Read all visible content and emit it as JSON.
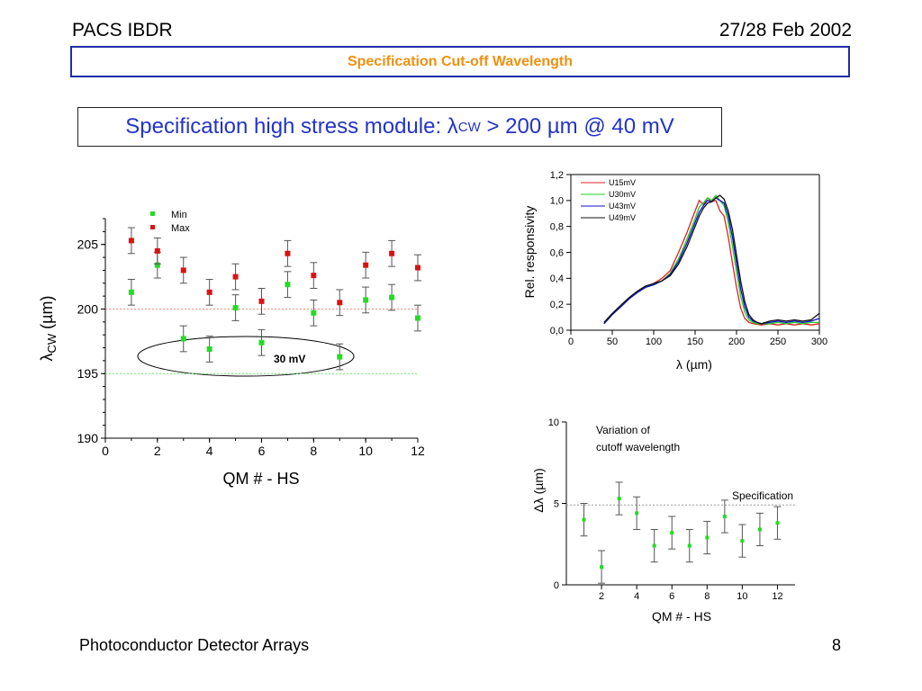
{
  "header": {
    "left": "PACS IBDR",
    "right": "27/28 Feb 2002"
  },
  "title": "Specification Cut-off Wavelength",
  "spec": {
    "prefix": "Specification high stress module: ",
    "lambda": "λ",
    "sub": "CW",
    "suffix": " > 200 µm @ 40 mV"
  },
  "footer": {
    "left": "Photoconductor Detector Arrays",
    "page": "8"
  },
  "colors": {
    "title": "#f09010",
    "box_border": "#1f2ca8",
    "spec_text": "#2333c8",
    "min": "#22dd22",
    "max": "#dd1111"
  },
  "chart_data": [
    {
      "type": "scatter",
      "title": "",
      "xlabel": "QM # - HS",
      "ylabel": "λCW (µm)",
      "xlim": [
        0,
        12
      ],
      "ylim": [
        190,
        207
      ],
      "xticks": [
        "0",
        "2",
        "4",
        "6",
        "8",
        "10",
        "12"
      ],
      "yticks": [
        "190",
        "195",
        "200",
        "205"
      ],
      "legend_position": "top-left",
      "series": [
        {
          "name": "Min",
          "color": "#22dd22",
          "x": [
            1,
            2,
            3,
            4,
            5,
            6,
            7,
            8,
            9,
            10,
            11,
            12
          ],
          "y": [
            201.3,
            203.4,
            197.7,
            196.9,
            200.1,
            197.4,
            201.9,
            199.7,
            196.3,
            200.7,
            200.9,
            199.3
          ],
          "err": 1.0
        },
        {
          "name": "Max",
          "color": "#dd1111",
          "x": [
            1,
            2,
            3,
            4,
            5,
            6,
            7,
            8,
            9,
            10,
            11,
            12
          ],
          "y": [
            205.3,
            204.5,
            203.0,
            201.3,
            202.5,
            200.6,
            204.3,
            202.6,
            200.5,
            203.4,
            204.3,
            203.2
          ],
          "err": 1.0
        }
      ],
      "reference_lines": [
        {
          "y": 200,
          "color": "#ff8888"
        },
        {
          "y": 195,
          "color": "#66ee66"
        }
      ],
      "annotations": [
        {
          "text": "30 mV"
        }
      ]
    },
    {
      "type": "line",
      "title": "",
      "xlabel": "λ (µm)",
      "ylabel": "Rel. responsivity",
      "xlim": [
        0,
        300
      ],
      "ylim": [
        0,
        1.2
      ],
      "xticks": [
        "0",
        "50",
        "100",
        "150",
        "200",
        "250",
        "300"
      ],
      "yticks": [
        "0,0",
        "0,2",
        "0,4",
        "0,6",
        "0,8",
        "1,0",
        "1,2"
      ],
      "legend_position": "top-left",
      "series": [
        {
          "name": "U15mV",
          "color": "#dd2222",
          "x": [
            40,
            50,
            60,
            70,
            80,
            90,
            100,
            110,
            120,
            130,
            140,
            150,
            155,
            160,
            165,
            170,
            175,
            180,
            185,
            190,
            195,
            200,
            205,
            210,
            215,
            220,
            230,
            240,
            250,
            260,
            270,
            280,
            290,
            300
          ],
          "y": [
            0.05,
            0.12,
            0.18,
            0.24,
            0.29,
            0.33,
            0.36,
            0.4,
            0.46,
            0.6,
            0.75,
            0.92,
            1.0,
            0.97,
            1.02,
            0.99,
            1.0,
            0.92,
            0.88,
            0.72,
            0.52,
            0.33,
            0.17,
            0.09,
            0.06,
            0.05,
            0.04,
            0.05,
            0.04,
            0.05,
            0.04,
            0.05,
            0.04,
            0.05
          ]
        },
        {
          "name": "U30mV",
          "color": "#22cc22",
          "x": [
            40,
            50,
            60,
            70,
            80,
            90,
            100,
            110,
            120,
            130,
            140,
            150,
            155,
            160,
            165,
            170,
            175,
            180,
            185,
            190,
            195,
            200,
            205,
            210,
            215,
            220,
            225,
            230,
            240,
            250,
            260,
            270,
            280,
            290,
            300
          ],
          "y": [
            0.05,
            0.12,
            0.18,
            0.24,
            0.29,
            0.33,
            0.35,
            0.38,
            0.44,
            0.55,
            0.7,
            0.86,
            0.95,
            0.98,
            1.02,
            1.0,
            1.04,
            1.0,
            0.96,
            0.83,
            0.65,
            0.45,
            0.26,
            0.14,
            0.08,
            0.06,
            0.05,
            0.05,
            0.05,
            0.06,
            0.05,
            0.06,
            0.05,
            0.06,
            0.06
          ]
        },
        {
          "name": "U43mV",
          "color": "#1111cc",
          "x": [
            40,
            50,
            60,
            70,
            80,
            90,
            100,
            110,
            120,
            130,
            140,
            150,
            155,
            160,
            165,
            170,
            175,
            180,
            185,
            190,
            195,
            200,
            205,
            210,
            215,
            220,
            225,
            230,
            240,
            250,
            260,
            270,
            280,
            290,
            300
          ],
          "y": [
            0.05,
            0.12,
            0.18,
            0.24,
            0.29,
            0.33,
            0.35,
            0.38,
            0.43,
            0.53,
            0.67,
            0.83,
            0.91,
            0.96,
            1.0,
            0.99,
            1.02,
            1.0,
            0.98,
            0.88,
            0.72,
            0.52,
            0.32,
            0.18,
            0.1,
            0.07,
            0.06,
            0.05,
            0.06,
            0.07,
            0.06,
            0.07,
            0.06,
            0.07,
            0.09
          ]
        },
        {
          "name": "U49mV",
          "color": "#111111",
          "x": [
            40,
            50,
            60,
            70,
            80,
            90,
            100,
            110,
            120,
            130,
            140,
            150,
            155,
            160,
            165,
            170,
            175,
            180,
            185,
            190,
            195,
            200,
            205,
            210,
            215,
            220,
            225,
            230,
            240,
            250,
            260,
            270,
            280,
            290,
            300
          ],
          "y": [
            0.06,
            0.13,
            0.19,
            0.25,
            0.3,
            0.34,
            0.36,
            0.38,
            0.42,
            0.51,
            0.64,
            0.8,
            0.88,
            0.94,
            0.98,
            0.99,
            1.02,
            1.04,
            1.01,
            0.92,
            0.78,
            0.58,
            0.38,
            0.22,
            0.12,
            0.08,
            0.06,
            0.05,
            0.07,
            0.08,
            0.07,
            0.08,
            0.07,
            0.08,
            0.13
          ]
        }
      ]
    },
    {
      "type": "scatter",
      "title": "",
      "xlabel": "QM # - HS",
      "ylabel": "Δλ (µm)",
      "xlim": [
        0,
        13
      ],
      "ylim": [
        0,
        10
      ],
      "xticks": [
        "2",
        "4",
        "6",
        "8",
        "10",
        "12"
      ],
      "yticks": [
        "0",
        "5",
        "10"
      ],
      "series": [
        {
          "name": "",
          "color": "#22dd22",
          "x": [
            1,
            2,
            3,
            4,
            5,
            6,
            7,
            8,
            9,
            10,
            11,
            12
          ],
          "y": [
            4.0,
            1.1,
            5.3,
            4.4,
            2.4,
            3.2,
            2.4,
            2.9,
            4.2,
            2.7,
            3.4,
            3.8
          ],
          "err": 1.0
        }
      ],
      "reference_lines": [
        {
          "y": 4.9,
          "color": "#999999"
        }
      ],
      "annotations": [
        {
          "text": "Variation of"
        },
        {
          "text": "cutoff wavelength"
        },
        {
          "text": "Specification"
        }
      ]
    }
  ]
}
